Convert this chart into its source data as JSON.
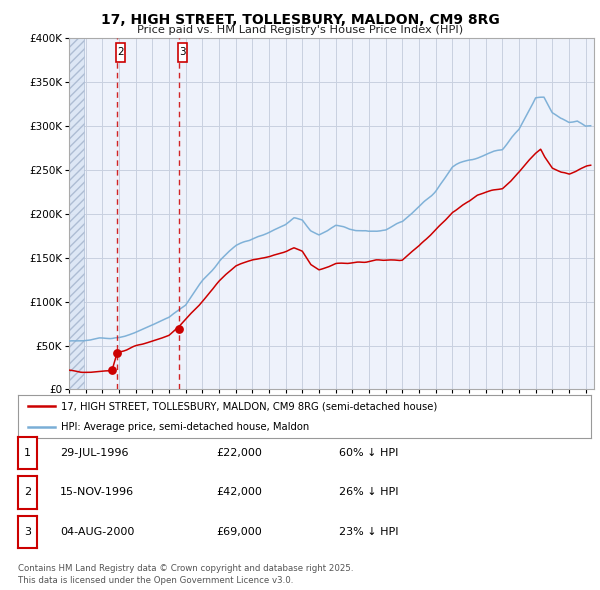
{
  "title": "17, HIGH STREET, TOLLESBURY, MALDON, CM9 8RG",
  "subtitle": "Price paid vs. HM Land Registry's House Price Index (HPI)",
  "legend_line1": "17, HIGH STREET, TOLLESBURY, MALDON, CM9 8RG (semi-detached house)",
  "legend_line2": "HPI: Average price, semi-detached house, Maldon",
  "red_line_color": "#cc0000",
  "blue_line_color": "#7aaed6",
  "trans1_date": 1996.575,
  "trans2_date": 1996.88,
  "trans3_date": 2000.59,
  "trans1_price": 22000,
  "trans2_price": 42000,
  "trans3_price": 69000,
  "table_rows": [
    {
      "num": "1",
      "date": "29-JUL-1996",
      "price": "£22,000",
      "note": "60% ↓ HPI"
    },
    {
      "num": "2",
      "date": "15-NOV-1996",
      "price": "£42,000",
      "note": "26% ↓ HPI"
    },
    {
      "num": "3",
      "date": "04-AUG-2000",
      "price": "£69,000",
      "note": "23% ↓ HPI"
    }
  ],
  "footer": "Contains HM Land Registry data © Crown copyright and database right 2025.\nThis data is licensed under the Open Government Licence v3.0.",
  "xmin": 1994.0,
  "xmax": 2025.5,
  "ymin": 0,
  "ymax": 400000,
  "yticks": [
    0,
    50000,
    100000,
    150000,
    200000,
    250000,
    300000,
    350000,
    400000
  ],
  "background_color": "#ffffff",
  "plot_bg_color": "#eef2fb",
  "grid_color": "#c8d0e0"
}
